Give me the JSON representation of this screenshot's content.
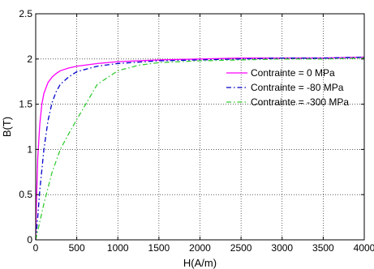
{
  "chart_data": {
    "type": "line",
    "xlabel": "H(A/m)",
    "ylabel": "B(T)",
    "xlim": [
      0,
      4000
    ],
    "ylim": [
      0,
      2.5
    ],
    "xticks": [
      0,
      500,
      1000,
      1500,
      2000,
      2500,
      3000,
      3500,
      4000
    ],
    "yticks": [
      0,
      0.5,
      1,
      1.5,
      2,
      2.5
    ],
    "xtick_labels": [
      "0",
      "500",
      "1000",
      "1500",
      "2000",
      "2500",
      "3000",
      "3500",
      "4000"
    ],
    "ytick_labels": [
      "0",
      "0.5",
      "1",
      "1.5",
      "2",
      "2.5"
    ],
    "grid": true,
    "legend_position": "right",
    "series": [
      {
        "name": "Contrainte = 0 MPa",
        "color": "#ff00ff",
        "style": "solid",
        "x": [
          0,
          10,
          25,
          50,
          75,
          100,
          150,
          200,
          250,
          300,
          400,
          500,
          750,
          1000,
          1500,
          2000,
          2500,
          3000,
          3500,
          4000
        ],
        "y": [
          0,
          0.45,
          0.9,
          1.28,
          1.5,
          1.62,
          1.74,
          1.8,
          1.84,
          1.87,
          1.9,
          1.92,
          1.95,
          1.97,
          1.99,
          2.0,
          2.01,
          2.01,
          2.01,
          2.02
        ]
      },
      {
        "name": "Contrainte = -80 MPa",
        "color": "#0000cc",
        "style": "dashdot",
        "x": [
          0,
          25,
          50,
          100,
          150,
          200,
          250,
          300,
          400,
          500,
          750,
          1000,
          1500,
          2000,
          2500,
          3000,
          3500,
          4000
        ],
        "y": [
          0,
          0.25,
          0.55,
          1.0,
          1.32,
          1.52,
          1.64,
          1.72,
          1.8,
          1.86,
          1.92,
          1.95,
          1.98,
          1.99,
          2.0,
          2.01,
          2.01,
          2.02
        ]
      },
      {
        "name": "Contrainte = -300 MPa",
        "color": "#33cc33",
        "style": "dashdot",
        "x": [
          0,
          100,
          200,
          300,
          400,
          500,
          750,
          1000,
          1250,
          1500,
          2000,
          2500,
          3000,
          3500,
          4000
        ],
        "y": [
          0,
          0.4,
          0.75,
          1.0,
          1.17,
          1.33,
          1.72,
          1.87,
          1.93,
          1.96,
          1.98,
          1.99,
          2.0,
          2.0,
          2.01
        ]
      }
    ]
  }
}
